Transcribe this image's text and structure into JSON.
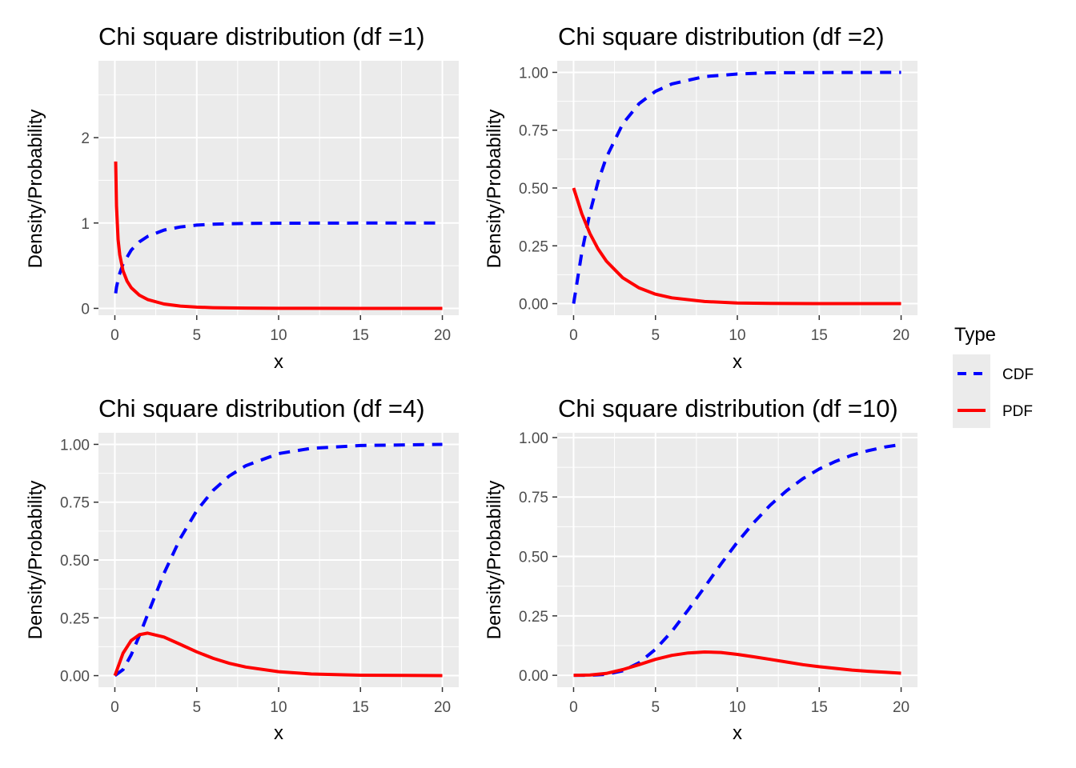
{
  "chart_data": [
    {
      "type": "line",
      "title": "Chi square distribution (df =1)",
      "xlabel": "x",
      "ylabel": "Density/Probability",
      "xlim": [
        -1,
        21
      ],
      "ylim": [
        -0.08,
        2.9
      ],
      "xticks": [
        0,
        5,
        10,
        15,
        20
      ],
      "xtick_labels": [
        "0",
        "5",
        "10",
        "15",
        "20"
      ],
      "yticks": [
        0,
        1,
        2
      ],
      "ytick_labels": [
        "0",
        "1",
        "2"
      ],
      "grid": true,
      "series": [
        {
          "name": "CDF",
          "x": [
            0.05,
            0.1,
            0.25,
            0.5,
            1,
            1.5,
            2,
            3,
            4,
            5,
            6,
            8,
            10,
            15,
            20
          ],
          "values": [
            0.177,
            0.248,
            0.383,
            0.52,
            0.683,
            0.779,
            0.843,
            0.917,
            0.954,
            0.975,
            0.986,
            0.995,
            0.998,
            1.0,
            1.0
          ]
        },
        {
          "name": "PDF",
          "x": [
            0.05,
            0.1,
            0.2,
            0.3,
            0.5,
            0.75,
            1,
            1.5,
            2,
            3,
            4,
            5,
            6,
            8,
            10,
            15,
            20
          ],
          "values": [
            1.72,
            1.2,
            0.807,
            0.627,
            0.439,
            0.317,
            0.242,
            0.154,
            0.104,
            0.051,
            0.027,
            0.015,
            0.008,
            0.003,
            0.001,
            0.0,
            0.0
          ]
        }
      ]
    },
    {
      "type": "line",
      "title": "Chi square distribution (df =2)",
      "xlabel": "x",
      "ylabel": "Density/Probability",
      "xlim": [
        -1,
        21
      ],
      "ylim": [
        -0.05,
        1.05
      ],
      "xticks": [
        0,
        5,
        10,
        15,
        20
      ],
      "xtick_labels": [
        "0",
        "5",
        "10",
        "15",
        "20"
      ],
      "yticks": [
        0,
        0.25,
        0.5,
        0.75,
        1
      ],
      "ytick_labels": [
        "0.00",
        "0.25",
        "0.50",
        "0.75",
        "1.00"
      ],
      "grid": true,
      "series": [
        {
          "name": "CDF",
          "x": [
            0,
            0.5,
            1,
            1.5,
            2,
            3,
            4,
            5,
            6,
            8,
            10,
            12,
            15,
            20
          ],
          "values": [
            0.0,
            0.221,
            0.393,
            0.528,
            0.632,
            0.777,
            0.865,
            0.918,
            0.95,
            0.982,
            0.993,
            0.998,
            0.999,
            1.0
          ]
        },
        {
          "name": "PDF",
          "x": [
            0,
            0.5,
            1,
            1.5,
            2,
            3,
            4,
            5,
            6,
            8,
            10,
            12,
            15,
            20
          ],
          "values": [
            0.5,
            0.389,
            0.303,
            0.236,
            0.184,
            0.112,
            0.068,
            0.041,
            0.025,
            0.009,
            0.003,
            0.001,
            0.0,
            0.0
          ]
        }
      ]
    },
    {
      "type": "line",
      "title": "Chi square distribution (df =4)",
      "xlabel": "x",
      "ylabel": "Density/Probability",
      "xlim": [
        -1,
        21
      ],
      "ylim": [
        -0.05,
        1.05
      ],
      "xticks": [
        0,
        5,
        10,
        15,
        20
      ],
      "xtick_labels": [
        "0",
        "5",
        "10",
        "15",
        "20"
      ],
      "yticks": [
        0,
        0.25,
        0.5,
        0.75,
        1
      ],
      "ytick_labels": [
        "0.00",
        "0.25",
        "0.50",
        "0.75",
        "1.00"
      ],
      "grid": true,
      "series": [
        {
          "name": "CDF",
          "x": [
            0,
            0.5,
            1,
            1.5,
            2,
            3,
            4,
            5,
            6,
            7,
            8,
            10,
            12,
            15,
            20
          ],
          "values": [
            0.0,
            0.026,
            0.09,
            0.173,
            0.264,
            0.442,
            0.594,
            0.713,
            0.801,
            0.864,
            0.908,
            0.96,
            0.983,
            0.995,
            1.0
          ]
        },
        {
          "name": "PDF",
          "x": [
            0,
            0.5,
            1,
            1.5,
            2,
            3,
            4,
            5,
            6,
            7,
            8,
            10,
            12,
            15,
            20
          ],
          "values": [
            0.0,
            0.097,
            0.152,
            0.177,
            0.184,
            0.167,
            0.135,
            0.103,
            0.075,
            0.053,
            0.037,
            0.017,
            0.007,
            0.002,
            0.0
          ]
        }
      ]
    },
    {
      "type": "line",
      "title": "Chi square distribution (df =10)",
      "xlabel": "x",
      "ylabel": "Density/Probability",
      "xlim": [
        -1,
        21
      ],
      "ylim": [
        -0.05,
        1.02
      ],
      "xticks": [
        0,
        5,
        10,
        15,
        20
      ],
      "xtick_labels": [
        "0",
        "5",
        "10",
        "15",
        "20"
      ],
      "yticks": [
        0,
        0.25,
        0.5,
        0.75,
        1
      ],
      "ytick_labels": [
        "0.00",
        "0.25",
        "0.50",
        "0.75",
        "1.00"
      ],
      "grid": true,
      "series": [
        {
          "name": "CDF",
          "x": [
            0,
            1,
            2,
            3,
            4,
            5,
            6,
            7,
            8,
            9,
            10,
            11,
            12,
            13,
            14,
            15,
            16,
            17,
            18,
            19,
            20
          ],
          "values": [
            0.0,
            0.0002,
            0.004,
            0.019,
            0.053,
            0.109,
            0.185,
            0.275,
            0.371,
            0.468,
            0.56,
            0.642,
            0.715,
            0.776,
            0.827,
            0.868,
            0.9,
            0.926,
            0.945,
            0.96,
            0.971
          ]
        },
        {
          "name": "PDF",
          "x": [
            0,
            1,
            2,
            3,
            4,
            5,
            6,
            7,
            8,
            9,
            10,
            11,
            12,
            13,
            14,
            15,
            16,
            17,
            18,
            19,
            20
          ],
          "values": [
            0.0,
            0.001,
            0.008,
            0.024,
            0.045,
            0.067,
            0.084,
            0.094,
            0.098,
            0.096,
            0.088,
            0.078,
            0.067,
            0.056,
            0.045,
            0.036,
            0.029,
            0.022,
            0.017,
            0.013,
            0.009
          ]
        }
      ]
    }
  ],
  "legend": {
    "title": "Type",
    "position": "right",
    "items": [
      {
        "label": "CDF",
        "color": "#0000FF",
        "linetype": "dashed"
      },
      {
        "label": "PDF",
        "color": "#FF0000",
        "linetype": "solid"
      }
    ]
  },
  "colors": {
    "panel_background": "#EBEBEB",
    "grid": "#FFFFFF",
    "tick_text": "#4D4D4D",
    "CDF": "#0000FF",
    "PDF": "#FF0000"
  }
}
